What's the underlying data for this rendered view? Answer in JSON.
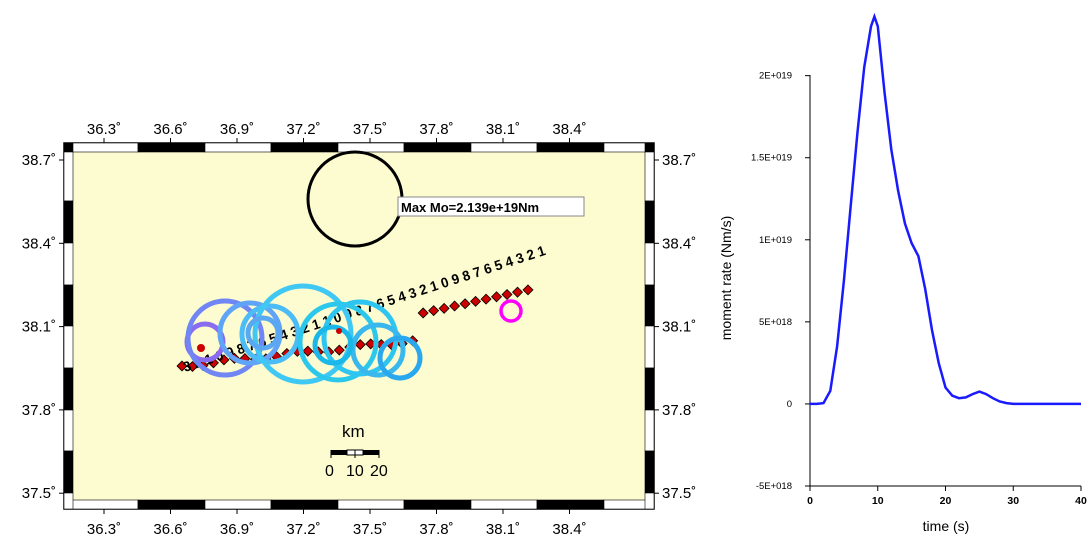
{
  "map": {
    "background_color": "#fdfbd0",
    "lon_ticks": [
      "36.3˚",
      "36.6˚",
      "36.9˚",
      "37.2˚",
      "37.5˚",
      "37.8˚",
      "38.1˚",
      "38.4˚"
    ],
    "lat_ticks": [
      "38.7˚",
      "38.4˚",
      "38.1˚",
      "37.8˚",
      "37.5˚"
    ],
    "max_label": "Max Mo=2.139e+19Nm",
    "scale_title": "km",
    "scale_ticks": [
      "0",
      "10",
      "20"
    ],
    "fault_label_text": "3 2 1 0 9 8 7 6 5 4 3 2 1 1 0 9 8 7 6 5 4 3 2 1 0 9 8 7 6 5 4 3 2 1",
    "marker_color": "#cc0000",
    "hypocenter_color": "#ff00ff"
  },
  "chart_data": {
    "type": "line",
    "title": "",
    "xlabel": "time (s)",
    "ylabel": "moment rate (Nm/s)",
    "xlim": [
      0,
      40
    ],
    "ylim": [
      -5e+18,
      2.4e+19
    ],
    "x_ticks": [
      "0",
      "10",
      "20",
      "30",
      "40"
    ],
    "y_ticks": [
      {
        "value": 2e+19,
        "label": "2E+019"
      },
      {
        "value": 1.5e+19,
        "label": "1.5E+019"
      },
      {
        "value": 1e+19,
        "label": "1E+019"
      },
      {
        "value": 5e+18,
        "label": "5E+018"
      },
      {
        "value": 0,
        "label": "0"
      },
      {
        "value": -5e+18,
        "label": "-5E+018"
      }
    ],
    "line_color": "#1a1aff",
    "series": [
      {
        "x": [
          0,
          1,
          2,
          3,
          4,
          5,
          6,
          7,
          8,
          9,
          9.5,
          10,
          11,
          12,
          13,
          14,
          15,
          16,
          17,
          18,
          19,
          20,
          21,
          22,
          23,
          24,
          25,
          26,
          27,
          28,
          29,
          30,
          31,
          35,
          40
        ],
        "values": [
          0,
          0,
          5e+16,
          8e+17,
          3.5e+18,
          7.5e+18,
          1.2e+19,
          1.65e+19,
          2.05e+19,
          2.3e+19,
          2.36e+19,
          2.3e+19,
          1.9e+19,
          1.55e+19,
          1.3e+19,
          1.1e+19,
          9.8e+18,
          9e+18,
          7e+18,
          4.5e+18,
          2.5e+18,
          1e+18,
          5e+17,
          3.5e+17,
          4e+17,
          6e+17,
          7.5e+17,
          6e+17,
          3.5e+17,
          1.5e+17,
          5e+16,
          0,
          0,
          0,
          0
        ]
      }
    ]
  }
}
